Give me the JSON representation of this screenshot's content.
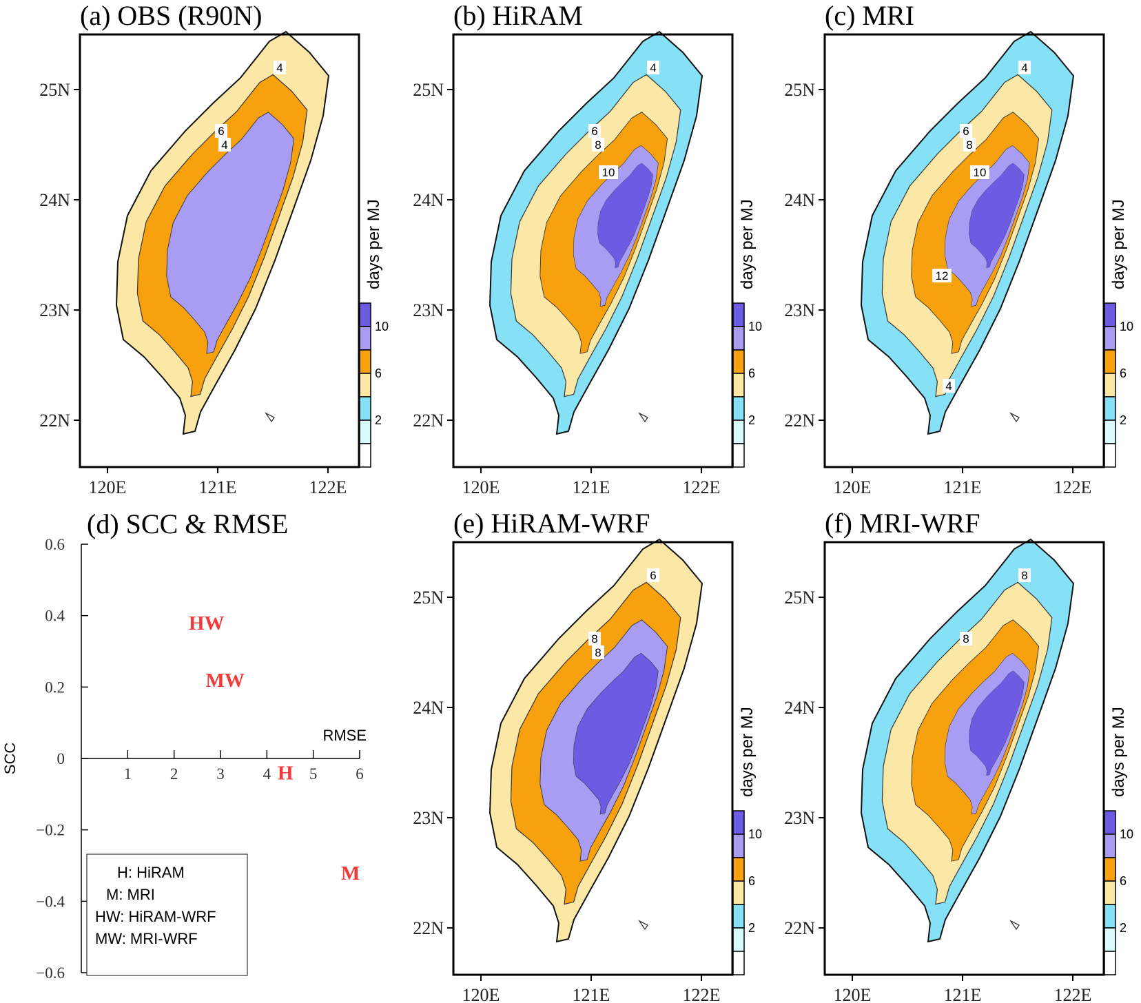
{
  "colors": {
    "c0_2": "#d8fbfc",
    "c2_4": "#86e1f6",
    "c4_6": "#fbe8a6",
    "c6_8": "#f7a10e",
    "c8_10": "#a89cf3",
    "c10p": "#6e5be3",
    "marker": "#f23a3a"
  },
  "maps": [
    {
      "id": "a",
      "title": "(a) OBS (R90N)",
      "fill_levels": [
        "c4_6",
        "c6_8",
        "c8_10"
      ],
      "contour_labels": [
        "4",
        "6",
        "4"
      ]
    },
    {
      "id": "b",
      "title": "(b) HiRAM",
      "fill_levels": [
        "c2_4",
        "c4_6",
        "c6_8",
        "c8_10",
        "c10p"
      ],
      "contour_labels": [
        "4",
        "6",
        "8",
        "10"
      ]
    },
    {
      "id": "c",
      "title": "(c) MRI",
      "fill_levels": [
        "c2_4",
        "c4_6",
        "c6_8",
        "c8_10",
        "c10p"
      ],
      "contour_labels": [
        "4",
        "6",
        "8",
        "10",
        "12",
        "4"
      ]
    },
    {
      "id": "e",
      "title": "(e) HiRAM-WRF",
      "fill_levels": [
        "c4_6",
        "c6_8",
        "c8_10",
        "c10p"
      ],
      "contour_labels": [
        "6",
        "8",
        "8"
      ]
    },
    {
      "id": "f",
      "title": "(f) MRI-WRF",
      "fill_levels": [
        "c2_4",
        "c4_6",
        "c6_8",
        "c8_10",
        "c10p"
      ],
      "contour_labels": [
        "8",
        "8"
      ]
    }
  ],
  "map_axes": {
    "lat_ticks": [
      "25N",
      "24N",
      "23N",
      "22N"
    ],
    "lon_ticks": [
      "120E",
      "121E",
      "122E"
    ]
  },
  "colorbar": {
    "label": "days per MJ",
    "tick_labels": [
      "10",
      "6",
      "2"
    ]
  },
  "chart_data": {
    "type": "scatter",
    "title": "(d) SCC & RMSE",
    "xlabel": "RMSE",
    "ylabel": "SCC",
    "xlim": [
      0,
      6
    ],
    "ylim": [
      -0.6,
      0.6
    ],
    "x_ticks": [
      1,
      2,
      3,
      4,
      5,
      6
    ],
    "y_ticks": [
      0.6,
      0.4,
      0.2,
      0,
      -0.2,
      -0.4,
      -0.6
    ],
    "y_tick_labels": [
      "0.6",
      "0.4",
      "0.2",
      "0",
      "−0.2",
      "−0.4",
      "−0.6"
    ],
    "points": [
      {
        "label": "HW",
        "x": 2.7,
        "y": 0.38
      },
      {
        "label": "MW",
        "x": 3.1,
        "y": 0.22
      },
      {
        "label": "H",
        "x": 4.4,
        "y": -0.04
      },
      {
        "label": "M",
        "x": 5.8,
        "y": -0.32
      }
    ],
    "legend": {
      "placement": "bottom-left",
      "entries": [
        "H: HiRAM",
        "M: MRI",
        "HW: HiRAM-WRF",
        "MW: MRI-WRF"
      ]
    }
  }
}
